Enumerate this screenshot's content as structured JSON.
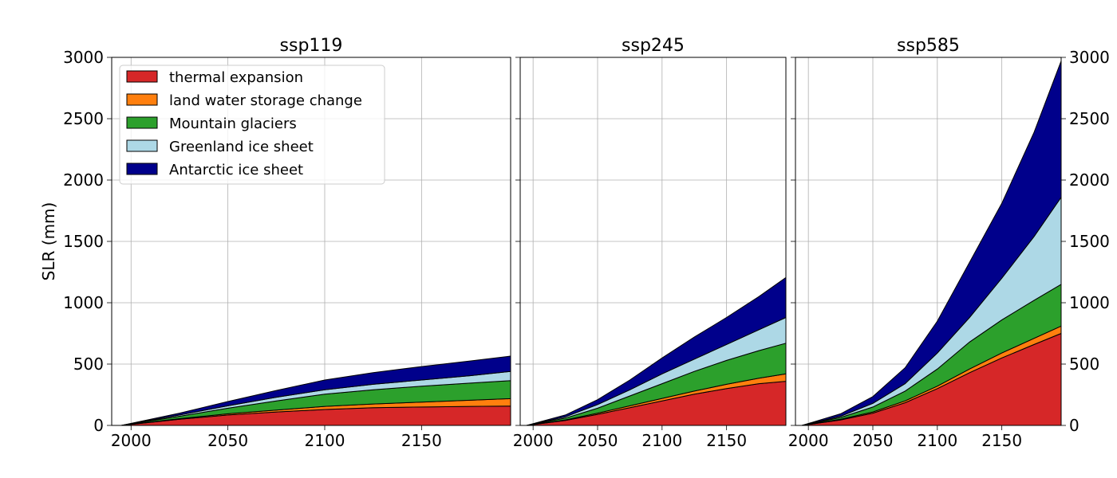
{
  "chart_data": {
    "type": "area",
    "stacked": true,
    "ylabel": "SLR (mm)",
    "ylim": [
      0,
      3000
    ],
    "xlim": [
      1990,
      2196
    ],
    "yticks": [
      0,
      500,
      1000,
      1500,
      2000,
      2500,
      3000
    ],
    "xticks": [
      2000,
      2050,
      2100,
      2150
    ],
    "grid": true,
    "legend_position": "top-left",
    "series": [
      {
        "name": "thermal expansion",
        "color": "#d62728"
      },
      {
        "name": "land water storage change",
        "color": "#ff7f0e"
      },
      {
        "name": "Mountain glaciers",
        "color": "#2ca02c"
      },
      {
        "name": "Greenland ice sheet",
        "color": "#add8e6"
      },
      {
        "name": "Antarctic ice sheet",
        "color": "#00008b"
      }
    ],
    "x": [
      1995,
      2025,
      2050,
      2075,
      2100,
      2125,
      2150,
      2175,
      2196
    ],
    "panels": [
      {
        "title": "ssp119",
        "stack_tops": {
          "thermal expansion": [
            0,
            50,
            85,
            110,
            130,
            145,
            150,
            155,
            158
          ],
          "land water storage change": [
            0,
            55,
            95,
            125,
            155,
            175,
            190,
            205,
            218
          ],
          "Mountain glaciers": [
            0,
            75,
            140,
            200,
            255,
            290,
            320,
            345,
            365
          ],
          "Greenland ice sheet": [
            0,
            85,
            160,
            230,
            290,
            335,
            370,
            405,
            440
          ],
          "Antarctic ice sheet": [
            0,
            100,
            195,
            285,
            370,
            430,
            480,
            525,
            565
          ]
        }
      },
      {
        "title": "ssp245",
        "stack_tops": {
          "thermal expansion": [
            0,
            40,
            90,
            145,
            200,
            255,
            300,
            340,
            360
          ],
          "land water storage change": [
            0,
            45,
            100,
            160,
            220,
            280,
            335,
            385,
            420
          ],
          "Mountain glaciers": [
            0,
            60,
            140,
            240,
            340,
            440,
            530,
            610,
            670
          ],
          "Greenland ice sheet": [
            0,
            70,
            170,
            290,
            420,
            540,
            660,
            780,
            880
          ],
          "Antarctic ice sheet": [
            0,
            85,
            210,
            370,
            550,
            720,
            880,
            1050,
            1205
          ]
        }
      },
      {
        "title": "ssp585",
        "stack_tops": {
          "thermal expansion": [
            0,
            45,
            100,
            185,
            300,
            430,
            550,
            660,
            750
          ],
          "land water storage change": [
            0,
            50,
            110,
            200,
            320,
            460,
            590,
            710,
            810
          ],
          "Mountain glaciers": [
            0,
            65,
            150,
            280,
            460,
            680,
            860,
            1020,
            1150
          ],
          "Greenland ice sheet": [
            0,
            75,
            180,
            340,
            590,
            880,
            1200,
            1540,
            1860
          ],
          "Antarctic ice sheet": [
            0,
            95,
            235,
            470,
            850,
            1330,
            1810,
            2390,
            2970
          ]
        }
      }
    ]
  }
}
